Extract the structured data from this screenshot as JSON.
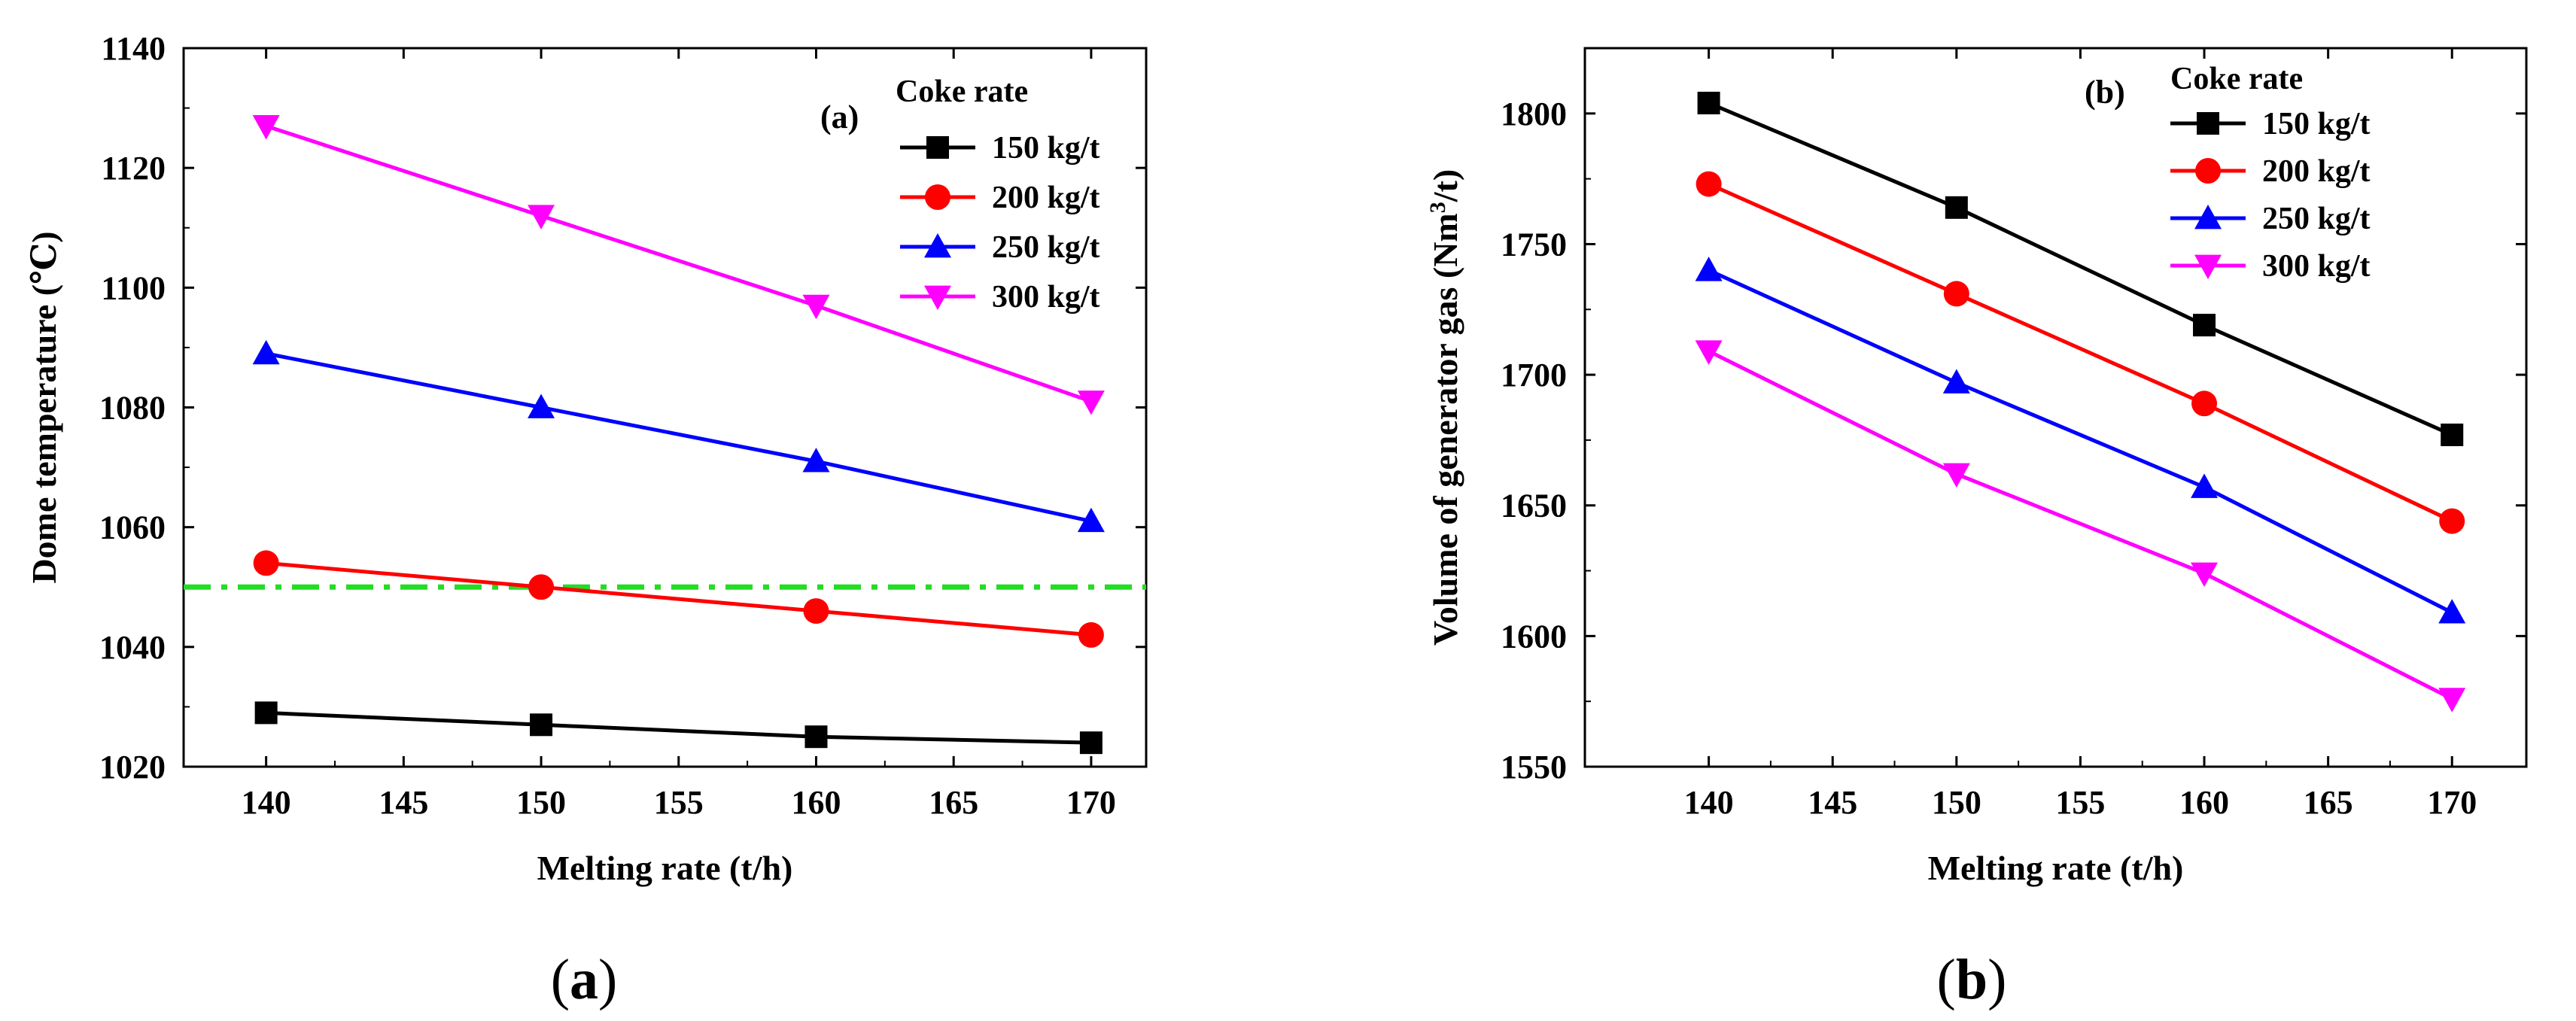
{
  "chart_data": [
    {
      "type": "line",
      "panel_label": "(a)",
      "caption": "(a)",
      "xlabel": "Melting rate (t/h)",
      "ylabel": "Dome temperature (℃)",
      "x": [
        140,
        150,
        160,
        170
      ],
      "xlim": [
        137,
        172
      ],
      "ylim": [
        1020,
        1140
      ],
      "xticks": [
        140,
        145,
        150,
        155,
        160,
        165,
        170
      ],
      "yticks": [
        1020,
        1040,
        1060,
        1080,
        1100,
        1120,
        1140
      ],
      "legend_title": "Coke rate",
      "reference_line": {
        "y": 1050,
        "style": "dash-dot",
        "color": "#22dd22"
      },
      "series": [
        {
          "name": "150 kg/t",
          "values": [
            1029,
            1027,
            1025,
            1024
          ],
          "color": "#000000",
          "marker": "square"
        },
        {
          "name": "200 kg/t",
          "values": [
            1054,
            1050,
            1046,
            1042
          ],
          "color": "#ff0000",
          "marker": "circle"
        },
        {
          "name": "250 kg/t",
          "values": [
            1089,
            1080,
            1071,
            1061
          ],
          "color": "#0000ff",
          "marker": "triangle-up"
        },
        {
          "name": "300 kg/t",
          "values": [
            1127,
            1112,
            1097,
            1081
          ],
          "color": "#ff00ff",
          "marker": "triangle-down"
        }
      ]
    },
    {
      "type": "line",
      "panel_label": "(b)",
      "caption": "(b)",
      "xlabel": "Melting rate (t/h)",
      "ylabel": "Volume of generator gas (Nm",
      "ylabel_sup": "3",
      "ylabel_tail": "/t)",
      "x": [
        140,
        150,
        160,
        170
      ],
      "xlim": [
        135,
        173
      ],
      "ylim": [
        1550,
        1825
      ],
      "xticks": [
        140,
        145,
        150,
        155,
        160,
        165,
        170
      ],
      "yticks": [
        1550,
        1600,
        1650,
        1700,
        1750,
        1800
      ],
      "legend_title": "Coke rate",
      "series": [
        {
          "name": "150 kg/t",
          "values": [
            1804,
            1764,
            1719,
            1677
          ],
          "color": "#000000",
          "marker": "square"
        },
        {
          "name": "200 kg/t",
          "values": [
            1773,
            1731,
            1689,
            1644
          ],
          "color": "#ff0000",
          "marker": "circle"
        },
        {
          "name": "250 kg/t",
          "values": [
            1740,
            1697,
            1657,
            1609
          ],
          "color": "#0000ff",
          "marker": "triangle-up"
        },
        {
          "name": "300 kg/t",
          "values": [
            1709,
            1662,
            1624,
            1576
          ],
          "color": "#ff00ff",
          "marker": "triangle-down"
        }
      ]
    }
  ]
}
